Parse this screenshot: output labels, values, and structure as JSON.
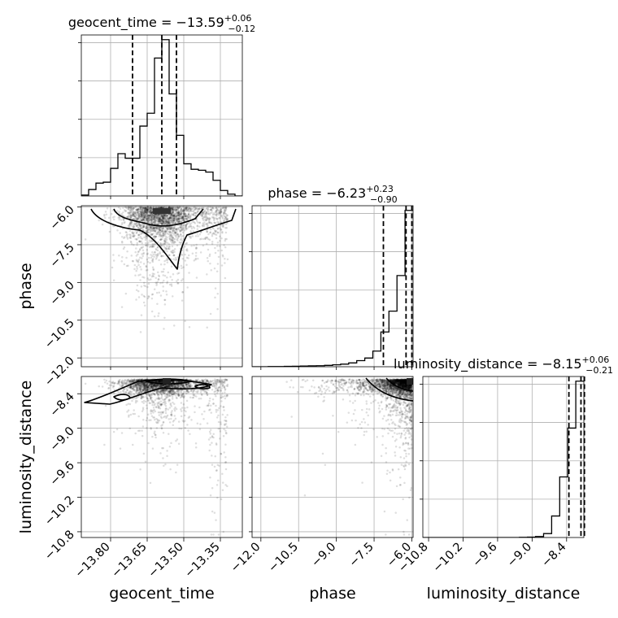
{
  "chart_data": {
    "type": "corner",
    "parameters": [
      {
        "name": "geocent_time",
        "axis_label": "geocent_time",
        "range": [
          -13.92,
          -13.26
        ],
        "ticks": [
          -13.8,
          -13.65,
          -13.5,
          -13.35
        ],
        "tick_labels": [
          "−13.80",
          "−13.65",
          "−13.50",
          "−13.35"
        ],
        "title": "geocent_time = −13.59",
        "title_upper": "+0.06",
        "title_lower": "−0.12",
        "median": -13.59,
        "quantiles": [
          -13.71,
          -13.59,
          -13.53
        ],
        "hist_x": [
          -13.92,
          -13.89,
          -13.86,
          -13.83,
          -13.8,
          -13.77,
          -13.74,
          -13.71,
          -13.68,
          -13.65,
          -13.62,
          -13.59,
          -13.56,
          -13.53,
          -13.5,
          -13.47,
          -13.44,
          -13.41,
          -13.38,
          -13.35,
          -13.32,
          -13.29,
          -13.26
        ],
        "hist_counts": [
          2,
          14,
          28,
          30,
          60,
          92,
          82,
          82,
          152,
          180,
          300,
          340,
          222,
          132,
          70,
          58,
          56,
          52,
          34,
          12,
          4,
          0
        ]
      },
      {
        "name": "phase",
        "axis_label": "phase",
        "range": [
          -12.35,
          -5.95
        ],
        "ticks": [
          -12.0,
          -10.5,
          -9.0,
          -7.5,
          -6.0
        ],
        "tick_labels": [
          "−12.0",
          "−10.5",
          "−9.0",
          "−7.5",
          "−6.0"
        ],
        "title": "phase = −6.23",
        "title_upper": "+0.23",
        "title_lower": "−0.90",
        "median": -6.23,
        "quantiles": [
          -7.13,
          -6.23,
          -6.0
        ],
        "hist_x": [
          -12.35,
          -12.03,
          -11.71,
          -11.39,
          -11.07,
          -10.75,
          -10.43,
          -10.11,
          -9.79,
          -9.47,
          -9.15,
          -8.83,
          -8.51,
          -8.19,
          -7.87,
          -7.55,
          -7.23,
          -6.91,
          -6.59,
          -6.27,
          -5.95
        ],
        "hist_counts": [
          0,
          0,
          2,
          2,
          4,
          6,
          8,
          10,
          12,
          16,
          22,
          30,
          44,
          70,
          100,
          180,
          400,
          640,
          1050,
          1800
        ]
      },
      {
        "name": "luminosity_distance",
        "axis_label": "luminosity_distance",
        "range": [
          -10.9,
          -8.1
        ],
        "ticks": [
          -10.8,
          -10.2,
          -9.6,
          -9.0,
          -8.4
        ],
        "tick_labels": [
          "−10.8",
          "−10.2",
          "−9.6",
          "−9.0",
          "−8.4"
        ],
        "title": "luminosity_distance = −8.15",
        "title_upper": "+0.06",
        "title_lower": "−0.21",
        "median": -8.15,
        "quantiles": [
          -8.36,
          -8.15,
          -8.09
        ],
        "hist_x": [
          -10.9,
          -10.76,
          -10.62,
          -10.48,
          -10.34,
          -10.2,
          -10.06,
          -9.92,
          -9.78,
          -9.64,
          -9.5,
          -9.36,
          -9.22,
          -9.08,
          -8.94,
          -8.8,
          -8.66,
          -8.52,
          -8.38,
          -8.24,
          -8.1
        ],
        "hist_counts": [
          0,
          0,
          0,
          0,
          0,
          0,
          0,
          0,
          0,
          0,
          0,
          0,
          2,
          4,
          10,
          40,
          220,
          620,
          1120,
          1600
        ]
      }
    ],
    "contour_levels": [
      0.39,
      0.86
    ]
  }
}
